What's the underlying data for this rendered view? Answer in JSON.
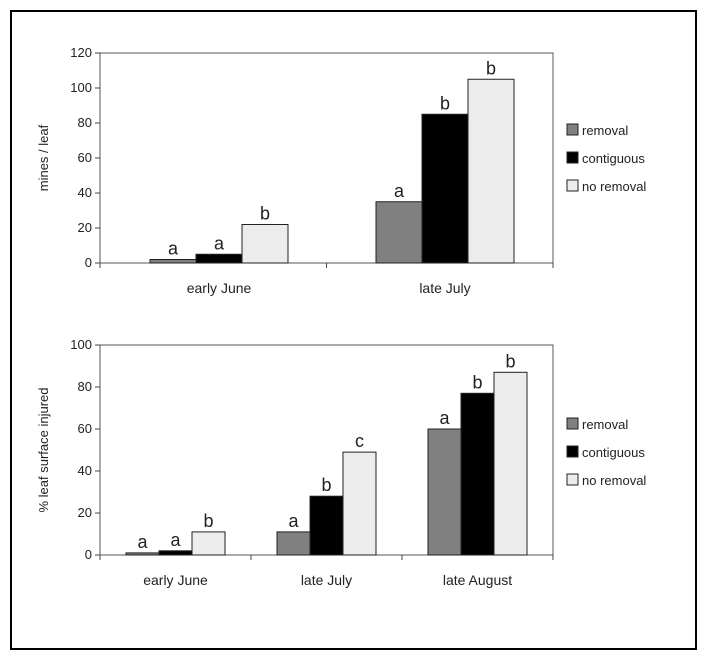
{
  "chart_data": [
    {
      "type": "bar",
      "categories": [
        "early June",
        "late July"
      ],
      "ylabel": "mines / leaf",
      "ylim": [
        0,
        120
      ],
      "yticks": [
        0,
        20,
        40,
        60,
        80,
        100,
        120
      ],
      "legend_position": "right",
      "series": [
        {
          "name": "removal",
          "color": "#808080",
          "values": [
            2,
            35
          ],
          "labels": [
            "a",
            "a"
          ]
        },
        {
          "name": "contiguous",
          "color": "#000000",
          "values": [
            5,
            85
          ],
          "labels": [
            "a",
            "b"
          ]
        },
        {
          "name": "no removal",
          "color": "#ececec",
          "values": [
            22,
            105
          ],
          "labels": [
            "b",
            "b"
          ]
        }
      ]
    },
    {
      "type": "bar",
      "categories": [
        "early June",
        "late July",
        "late August"
      ],
      "ylabel": "% leaf surface injured",
      "ylim": [
        0,
        100
      ],
      "yticks": [
        0,
        20,
        40,
        60,
        80,
        100
      ],
      "legend_position": "right",
      "series": [
        {
          "name": "removal",
          "color": "#808080",
          "values": [
            1,
            11,
            60
          ],
          "labels": [
            "a",
            "a",
            "a"
          ]
        },
        {
          "name": "contiguous",
          "color": "#000000",
          "values": [
            2,
            28,
            77
          ],
          "labels": [
            "a",
            "b",
            "b"
          ]
        },
        {
          "name": "no removal",
          "color": "#ececec",
          "values": [
            11,
            49,
            87
          ],
          "labels": [
            "b",
            "c",
            "b"
          ]
        }
      ]
    }
  ]
}
